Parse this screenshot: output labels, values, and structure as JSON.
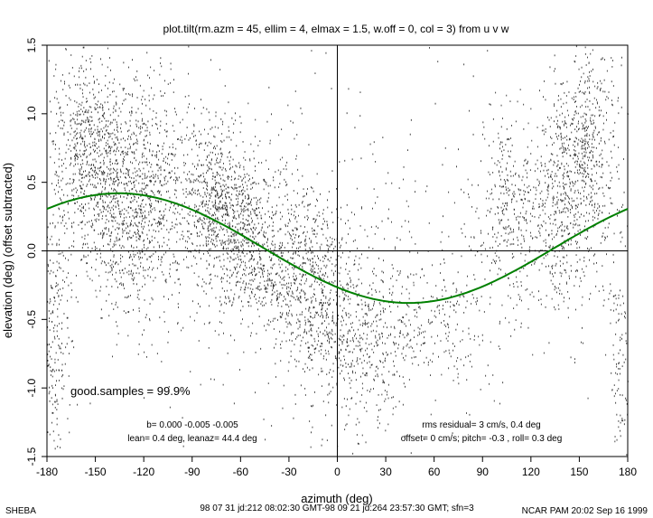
{
  "chart_data": {
    "type": "scatter",
    "title": "plot.tilt(rm.azm = 45, ellim = 4, elmax = 1.5, w.off = 0, col = 3) from u v w",
    "xlabel": "azimuth (deg)",
    "ylabel": "elevation (deg)  (offset subtracted)",
    "xlim": [
      -180,
      180
    ],
    "ylim": [
      -1.5,
      1.5
    ],
    "x_ticks": [
      "-180",
      "-150",
      "-120",
      "-90",
      "-60",
      "-30",
      "0",
      "30",
      "60",
      "90",
      "120",
      "150",
      "180"
    ],
    "y_ticks": [
      "-1.5",
      "-1.0",
      "-0.5",
      "0.0",
      "0.5",
      "1.0",
      "1.5"
    ],
    "grid": false,
    "reference_lines": {
      "x": 0,
      "y": 0
    },
    "fit_curve": {
      "color": "#008000",
      "amplitude_deg": 0.4,
      "phase_deg": 44.4,
      "points": [
        {
          "x": -180,
          "y": 0.28
        },
        {
          "x": -150,
          "y": 0.37
        },
        {
          "x": -135,
          "y": 0.39
        },
        {
          "x": -120,
          "y": 0.37
        },
        {
          "x": -90,
          "y": 0.25
        },
        {
          "x": -60,
          "y": 0.06
        },
        {
          "x": -45,
          "y": -0.02
        },
        {
          "x": -30,
          "y": -0.13
        },
        {
          "x": 0,
          "y": -0.28
        },
        {
          "x": 30,
          "y": -0.38
        },
        {
          "x": 45,
          "y": -0.4
        },
        {
          "x": 60,
          "y": -0.38
        },
        {
          "x": 90,
          "y": -0.26
        },
        {
          "x": 120,
          "y": -0.07
        },
        {
          "x": 135,
          "y": 0.02
        },
        {
          "x": 150,
          "y": 0.11
        },
        {
          "x": 180,
          "y": 0.28
        }
      ]
    },
    "scatter_clusters": [
      {
        "x": -155,
        "y": 0.75,
        "sx": 12,
        "sy": 0.35,
        "n": 700
      },
      {
        "x": -130,
        "y": 0.25,
        "sx": 15,
        "sy": 0.35,
        "n": 650
      },
      {
        "x": -115,
        "y": 0.6,
        "sx": 15,
        "sy": 0.4,
        "n": 450
      },
      {
        "x": -75,
        "y": 0.35,
        "sx": 12,
        "sy": 0.3,
        "n": 600
      },
      {
        "x": -55,
        "y": 0.1,
        "sx": 15,
        "sy": 0.3,
        "n": 500
      },
      {
        "x": -30,
        "y": -0.15,
        "sx": 15,
        "sy": 0.3,
        "n": 450
      },
      {
        "x": -10,
        "y": -0.4,
        "sx": 12,
        "sy": 0.35,
        "n": 350
      },
      {
        "x": 15,
        "y": -0.7,
        "sx": 15,
        "sy": 0.35,
        "n": 300
      },
      {
        "x": 50,
        "y": -0.55,
        "sx": 25,
        "sy": 0.25,
        "n": 300
      },
      {
        "x": 105,
        "y": 0.3,
        "sx": 12,
        "sy": 0.35,
        "n": 350
      },
      {
        "x": 140,
        "y": 0.35,
        "sx": 12,
        "sy": 0.4,
        "n": 450
      },
      {
        "x": 155,
        "y": 0.8,
        "sx": 10,
        "sy": 0.4,
        "n": 500
      },
      {
        "x": -175,
        "y": -0.6,
        "sx": 5,
        "sy": 0.5,
        "n": 220
      },
      {
        "x": 176,
        "y": -0.8,
        "sx": 4,
        "sy": 0.4,
        "n": 120
      },
      {
        "x": 0,
        "y": 0.0,
        "sx": 100,
        "sy": 0.7,
        "n": 500
      }
    ]
  },
  "annotations": {
    "good_samples": "good.samples = 99.9%",
    "b": "b=  0.000 -0.005 -0.005",
    "lean": "lean= 0.4 deg, leanaz= 44.4 deg",
    "rms": "rms residual= 3 cm/s, 0.4 deg",
    "offset": "offset= 0 cm/s; pitch= -0.3 , roll=  0.3 deg"
  },
  "footer": {
    "left": "SHEBA",
    "center": "98 07 31 jd:212 08:02:30 GMT-98 09 21 jd:264 23:57:30 GMT; sfn=3",
    "right": "NCAR PAM 20:02 Sep 16 1999"
  }
}
